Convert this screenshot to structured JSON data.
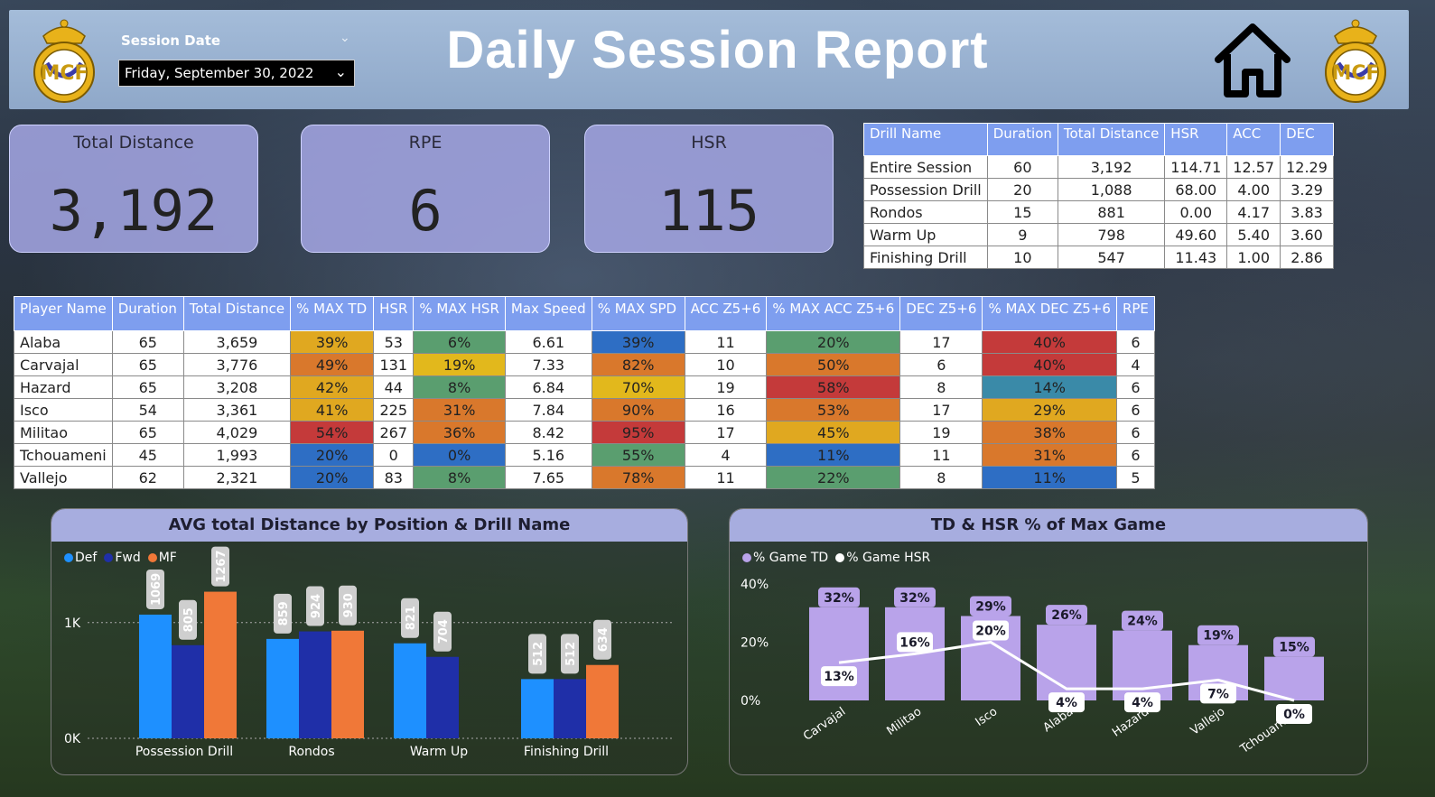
{
  "header": {
    "title": "Daily Session Report",
    "session_date_label": "Session Date",
    "session_date_value": "Friday, September 30, 2022"
  },
  "kpis": [
    {
      "label": "Total Distance",
      "value": "3,192"
    },
    {
      "label": "RPE",
      "value": "6"
    },
    {
      "label": "HSR",
      "value": "115"
    }
  ],
  "drill_table": {
    "columns": [
      "Drill Name",
      "Duration",
      "Total Distance",
      "HSR",
      "ACC",
      "DEC"
    ],
    "rows": [
      [
        "Entire Session",
        "60",
        "3,192",
        "114.71",
        "12.57",
        "12.29"
      ],
      [
        "Possession Drill",
        "20",
        "1,088",
        "68.00",
        "4.00",
        "3.29"
      ],
      [
        "Rondos",
        "15",
        "881",
        "0.00",
        "4.17",
        "3.83"
      ],
      [
        "Warm Up",
        "9",
        "798",
        "49.60",
        "5.40",
        "3.60"
      ],
      [
        "Finishing Drill",
        "10",
        "547",
        "11.43",
        "1.00",
        "2.86"
      ]
    ]
  },
  "player_table": {
    "columns": [
      "Player Name",
      "Duration",
      "Total Distance",
      "% MAX TD",
      "HSR",
      "% MAX HSR",
      "Max Speed",
      "% MAX SPD",
      "ACC Z5+6",
      "% MAX ACC Z5+6",
      "DEC Z5+6",
      "% MAX DEC Z5+6",
      "RPE"
    ],
    "rows": [
      [
        "Alaba",
        "65",
        "3,659",
        "39%",
        "53",
        "6%",
        "6.61",
        "39%",
        "11",
        "20%",
        "17",
        "40%",
        "6"
      ],
      [
        "Carvajal",
        "65",
        "3,776",
        "49%",
        "131",
        "19%",
        "7.33",
        "82%",
        "10",
        "50%",
        "6",
        "40%",
        "4"
      ],
      [
        "Hazard",
        "65",
        "3,208",
        "42%",
        "44",
        "8%",
        "6.84",
        "70%",
        "19",
        "58%",
        "8",
        "14%",
        "6"
      ],
      [
        "Isco",
        "54",
        "3,361",
        "41%",
        "225",
        "31%",
        "7.84",
        "90%",
        "16",
        "53%",
        "17",
        "29%",
        "6"
      ],
      [
        "Militao",
        "65",
        "4,029",
        "54%",
        "267",
        "36%",
        "8.42",
        "95%",
        "17",
        "45%",
        "19",
        "38%",
        "6"
      ],
      [
        "Tchouameni",
        "45",
        "1,993",
        "20%",
        "0",
        "0%",
        "5.16",
        "55%",
        "4",
        "11%",
        "11",
        "31%",
        "6"
      ],
      [
        "Vallejo",
        "62",
        "2,321",
        "20%",
        "83",
        "8%",
        "7.65",
        "78%",
        "11",
        "22%",
        "8",
        "11%",
        "5"
      ]
    ],
    "cell_colors": [
      [
        null,
        null,
        null,
        "#e0a820",
        null,
        "#5a9e6f",
        null,
        "#2e6ec4",
        null,
        "#5a9e6f",
        null,
        "#c43a3a",
        null
      ],
      [
        null,
        null,
        null,
        "#d9782c",
        null,
        "#e2b81c",
        null,
        "#d9782c",
        null,
        "#d9782c",
        null,
        "#c43a3a",
        null
      ],
      [
        null,
        null,
        null,
        "#e0a820",
        null,
        "#5a9e6f",
        null,
        "#e2b81c",
        null,
        "#c43a3a",
        null,
        "#3a8aa8",
        null
      ],
      [
        null,
        null,
        null,
        "#e0a820",
        null,
        "#d9782c",
        null,
        "#d9782c",
        null,
        "#d9782c",
        null,
        "#e0a820",
        null
      ],
      [
        null,
        null,
        null,
        "#c43a3a",
        null,
        "#d9782c",
        null,
        "#c43a3a",
        null,
        "#e0a820",
        null,
        "#d9782c",
        null
      ],
      [
        null,
        null,
        null,
        "#2e6ec4",
        null,
        "#2e6ec4",
        null,
        "#5a9e6f",
        null,
        "#2e6ec4",
        null,
        "#d9782c",
        null
      ],
      [
        null,
        null,
        null,
        "#2e6ec4",
        null,
        "#5a9e6f",
        null,
        "#d9782c",
        null,
        "#5a9e6f",
        null,
        "#2e6ec4",
        null
      ]
    ]
  },
  "chart_data": [
    {
      "type": "bar",
      "title": "AVG total Distance by Position & Drill Name",
      "categories": [
        "Possession Drill",
        "Rondos",
        "Warm Up",
        "Finishing Drill"
      ],
      "series": [
        {
          "name": "Def",
          "color": "#1e90ff",
          "values": [
            1069,
            859,
            821,
            512
          ]
        },
        {
          "name": "Fwd",
          "color": "#1f2fa8",
          "values": [
            805,
            924,
            704,
            512
          ]
        },
        {
          "name": "MF",
          "color": "#f07838",
          "values": [
            1267,
            930,
            null,
            634
          ]
        }
      ],
      "yticks": [
        "0K",
        "1K"
      ],
      "ylim": [
        0,
        1300
      ],
      "legend_position": "top-left"
    },
    {
      "type": "bar-line",
      "title": "TD & HSR % of Max Game",
      "categories": [
        "Carvajal",
        "Militao",
        "Isco",
        "Alaba",
        "Hazard",
        "Vallejo",
        "Tchouameni"
      ],
      "series": [
        {
          "name": "% Game TD",
          "color": "#b9a3ea",
          "values": [
            32,
            32,
            29,
            26,
            24,
            19,
            15
          ],
          "labels": [
            "32%",
            "32%",
            "29%",
            "26%",
            "24%",
            "19%",
            "15%"
          ]
        },
        {
          "name": "% Game HSR",
          "color": "#ffffff",
          "values": [
            13,
            16,
            20,
            4,
            4,
            7,
            0
          ],
          "labels": [
            "13%",
            "16%",
            "20%",
            "4%",
            "4%",
            "7%",
            "0%"
          ]
        }
      ],
      "yticks": [
        "0%",
        "20%",
        "40%"
      ],
      "ylim": [
        0,
        40
      ],
      "legend_position": "top-left"
    }
  ]
}
